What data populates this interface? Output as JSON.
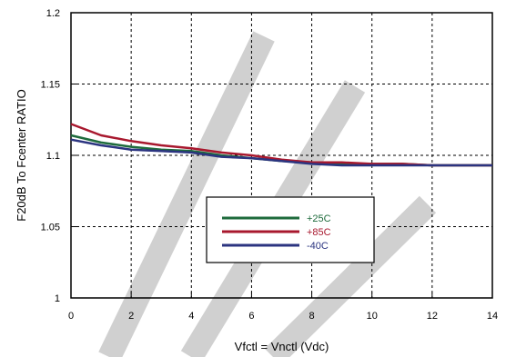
{
  "chart_data": {
    "type": "line",
    "title": "",
    "xlabel": "Vfctl = Vnctl (Vdc)",
    "ylabel": "F20dB To Fcenter RATIO",
    "xlim": [
      0,
      14
    ],
    "ylim": [
      1,
      1.2
    ],
    "x_ticks": [
      "0",
      "2",
      "4",
      "6",
      "8",
      "10",
      "12",
      "14"
    ],
    "y_ticks": [
      "1",
      "1.05",
      "1.1",
      "1.15",
      "1.2"
    ],
    "grid": "dashed",
    "legend_position": "center",
    "x": [
      0,
      1,
      2,
      3,
      4,
      5,
      6,
      7,
      8,
      9,
      10,
      11,
      12,
      13,
      14
    ],
    "series": [
      {
        "name": "+25C",
        "color": "#1e6b3c",
        "values": [
          1.114,
          1.109,
          1.106,
          1.104,
          1.103,
          1.1,
          1.098,
          1.096,
          1.095,
          1.094,
          1.094,
          1.094,
          1.093,
          1.093,
          1.093
        ]
      },
      {
        "name": "+85C",
        "color": "#a8182e",
        "values": [
          1.122,
          1.114,
          1.11,
          1.107,
          1.105,
          1.102,
          1.1,
          1.097,
          1.095,
          1.095,
          1.094,
          1.094,
          1.093,
          1.093,
          1.093
        ]
      },
      {
        "name": "-40C",
        "color": "#2b3480",
        "values": [
          1.111,
          1.107,
          1.104,
          1.103,
          1.102,
          1.099,
          1.098,
          1.096,
          1.094,
          1.093,
          1.093,
          1.093,
          1.093,
          1.093,
          1.093
        ]
      }
    ]
  }
}
